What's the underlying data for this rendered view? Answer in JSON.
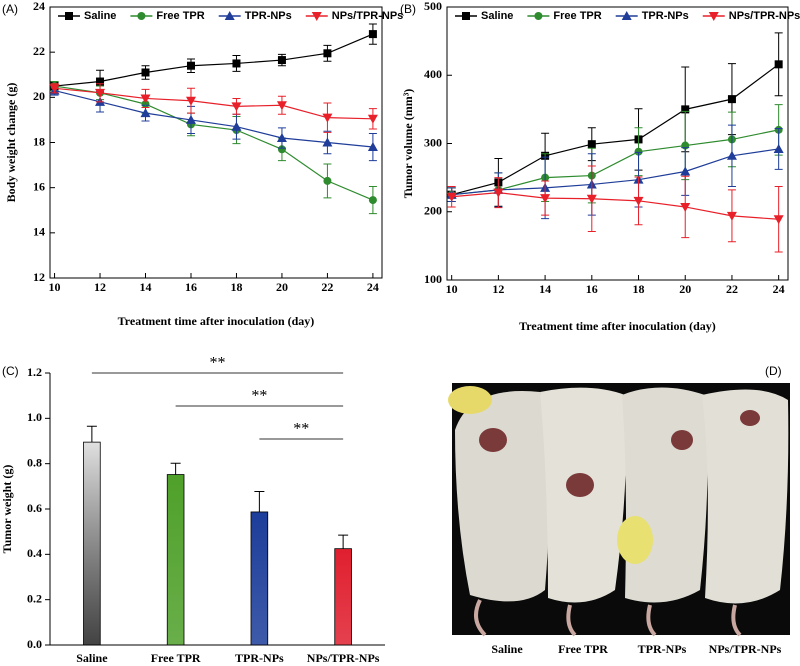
{
  "chart_data": [
    {
      "type": "line",
      "panel": "(A)",
      "x_label": "Treatment time after inoculation (day)",
      "y_label": "Body weight change (g)",
      "x": [
        10,
        12,
        14,
        16,
        18,
        20,
        22,
        24
      ],
      "xlim": [
        9.8,
        24.4
      ],
      "xticks": [
        10,
        12,
        14,
        16,
        18,
        20,
        22,
        24
      ],
      "ylim": [
        12,
        24
      ],
      "yticks": [
        12,
        14,
        16,
        18,
        20,
        22,
        24
      ],
      "series": [
        {
          "name": "Saline",
          "color": "#000000",
          "marker": "square",
          "values": [
            20.5,
            20.7,
            21.1,
            21.4,
            21.5,
            21.65,
            21.95,
            22.8
          ],
          "errors": [
            0.2,
            0.5,
            0.3,
            0.3,
            0.35,
            0.25,
            0.35,
            0.45
          ]
        },
        {
          "name": "Free TPR",
          "color": "#2e8b2e",
          "marker": "circle",
          "values": [
            20.5,
            20.2,
            19.7,
            18.8,
            18.55,
            17.7,
            16.3,
            15.45
          ],
          "errors": [
            0.2,
            0.3,
            0.4,
            0.5,
            0.6,
            0.5,
            0.75,
            0.6
          ]
        },
        {
          "name": "TPR-NPs",
          "color": "#1f3d99",
          "marker": "triangle-up",
          "values": [
            20.3,
            19.8,
            19.3,
            19.0,
            18.7,
            18.2,
            18.0,
            17.8
          ],
          "errors": [
            0.2,
            0.45,
            0.35,
            0.6,
            0.55,
            0.45,
            0.5,
            0.6
          ]
        },
        {
          "name": "NPs/TPR-NPs",
          "color": "#e8202a",
          "marker": "triangle-down",
          "values": [
            20.4,
            20.2,
            19.95,
            19.85,
            19.6,
            19.65,
            19.1,
            19.05
          ],
          "errors": [
            0.2,
            0.4,
            0.4,
            0.55,
            0.35,
            0.4,
            0.65,
            0.45
          ]
        }
      ]
    },
    {
      "type": "line",
      "panel": "(B)",
      "x_label": "Treatment time after inoculation (day)",
      "y_label": "Tumor volume (mm³)",
      "x": [
        10,
        12,
        14,
        16,
        18,
        20,
        22,
        24
      ],
      "xlim": [
        9.8,
        24.4
      ],
      "xticks": [
        10,
        12,
        14,
        16,
        18,
        20,
        22,
        24
      ],
      "ylim": [
        100,
        500
      ],
      "yticks": [
        100,
        200,
        300,
        400,
        500
      ],
      "series": [
        {
          "name": "Saline",
          "color": "#000000",
          "marker": "square",
          "values": [
            225,
            243,
            282,
            299,
            306,
            350,
            365,
            416
          ],
          "errors": [
            10,
            35,
            33,
            24,
            45,
            62,
            52,
            46
          ]
        },
        {
          "name": "Free TPR",
          "color": "#2e8b2e",
          "marker": "circle",
          "values": [
            225,
            232,
            250,
            253,
            288,
            297,
            306,
            320
          ],
          "errors": [
            10,
            25,
            35,
            40,
            35,
            50,
            40,
            37
          ]
        },
        {
          "name": "TPR-NPs",
          "color": "#1f3d99",
          "marker": "triangle-up",
          "values": [
            225,
            232,
            235,
            240,
            247,
            259,
            282,
            292
          ],
          "errors": [
            10,
            25,
            45,
            45,
            40,
            35,
            45,
            30
          ]
        },
        {
          "name": "NPs/TPR-NPs",
          "color": "#e8202a",
          "marker": "triangle-down",
          "values": [
            222,
            228,
            220,
            219,
            216,
            207,
            194,
            189
          ],
          "errors": [
            15,
            22,
            25,
            48,
            35,
            45,
            38,
            48
          ]
        }
      ]
    },
    {
      "type": "bar",
      "panel": "(C)",
      "y_label": "Tumor weight (g)",
      "categories": [
        "Saline",
        "Free TPR",
        "TPR-NPs",
        "NPs/TPR-NPs"
      ],
      "values": [
        0.895,
        0.752,
        0.587,
        0.425
      ],
      "errors": [
        0.07,
        0.05,
        0.09,
        0.06
      ],
      "colors": [
        "#8a8a8a",
        "#4fa02a",
        "#1c3d9a",
        "#e01f2f"
      ],
      "ylim": [
        0,
        1.2
      ],
      "yticks": [
        {
          "value": 0,
          "label": "0.0"
        },
        0.2,
        0.4,
        0.6,
        0.8,
        {
          "value": 1,
          "label": "1.0"
        },
        1.2
      ],
      "comparisons": [
        {
          "label": "**",
          "from": 0,
          "to": 3
        },
        {
          "label": "**",
          "from": 1,
          "to": 3
        },
        {
          "label": "**",
          "from": 2,
          "to": 3
        }
      ]
    }
  ],
  "photo": {
    "panel": "(D)",
    "captions": [
      "Saline",
      "Free TPR",
      "TPR-NPs",
      "NPs/TPR-NPs"
    ]
  }
}
